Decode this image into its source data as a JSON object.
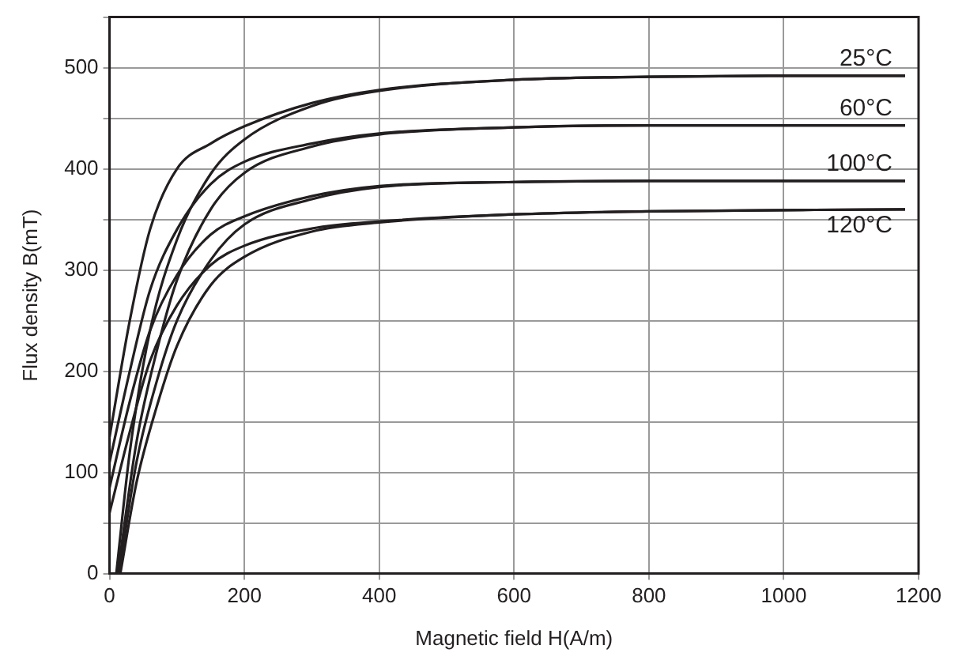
{
  "chart_data": {
    "type": "line",
    "xlabel": "Magnetic field H(A/m)",
    "ylabel": "Flux density B(mT)",
    "xlim": [
      0,
      1200
    ],
    "xticks": [
      0,
      200,
      400,
      600,
      800,
      1000,
      1200
    ],
    "ylim": [
      0,
      550
    ],
    "yticks": [
      0,
      {
        "value": 50,
        "label": null
      },
      100,
      {
        "value": 150,
        "label": null
      },
      200,
      {
        "value": 250,
        "label": null
      },
      300,
      {
        "value": 350,
        "label": null
      },
      400,
      {
        "value": 450,
        "label": null
      },
      500,
      {
        "value": 550,
        "label": null
      }
    ],
    "grid": true,
    "legend": false,
    "marker": "none",
    "line_style": "solid",
    "series": [
      {
        "name": "25°C",
        "color": "#231f20",
        "x": [
          0,
          30,
          60,
          100,
          150,
          200,
          300,
          400,
          600,
          800,
          1000,
          1180
        ],
        "values": [
          135,
          250,
          340,
          400,
          425,
          442,
          465,
          478,
          488,
          491,
          492,
          492
        ]
      },
      {
        "color": "#231f20",
        "x": [
          10,
          30,
          60,
          100,
          150,
          200,
          300,
          400,
          600,
          800,
          1000,
          1180
        ],
        "values": [
          0,
          120,
          240,
          330,
          395,
          429,
          462,
          477,
          488,
          491,
          492,
          492
        ]
      },
      {
        "name": "60°C",
        "color": "#231f20",
        "x": [
          0,
          30,
          60,
          100,
          150,
          200,
          300,
          400,
          600,
          800,
          1180
        ],
        "values": [
          110,
          200,
          280,
          340,
          385,
          407,
          425,
          435,
          441,
          443,
          443
        ]
      },
      {
        "color": "#231f20",
        "x": [
          12,
          40,
          70,
          100,
          150,
          200,
          300,
          400,
          600,
          800,
          1180
        ],
        "values": [
          0,
          130,
          220,
          290,
          360,
          396,
          422,
          434,
          441,
          443,
          443
        ]
      },
      {
        "name": "100°C",
        "color": "#231f20",
        "x": [
          0,
          30,
          60,
          100,
          150,
          200,
          300,
          400,
          600,
          800,
          1180
        ],
        "values": [
          85,
          170,
          240,
          295,
          335,
          353,
          373,
          383,
          387,
          388,
          388
        ]
      },
      {
        "color": "#231f20",
        "x": [
          14,
          40,
          70,
          100,
          150,
          200,
          300,
          400,
          600,
          800,
          1180
        ],
        "values": [
          0,
          110,
          190,
          250,
          310,
          345,
          370,
          382,
          387,
          388,
          388
        ]
      },
      {
        "name": "120°C",
        "color": "#231f20",
        "x": [
          0,
          30,
          60,
          100,
          150,
          200,
          300,
          400,
          600,
          800,
          1180
        ],
        "values": [
          60,
          140,
          210,
          265,
          305,
          324,
          341,
          348,
          355,
          358,
          360
        ]
      },
      {
        "color": "#231f20",
        "x": [
          16,
          40,
          70,
          100,
          150,
          200,
          300,
          400,
          600,
          800,
          1180
        ],
        "values": [
          0,
          90,
          165,
          225,
          285,
          313,
          338,
          347,
          355,
          358,
          360
        ]
      }
    ]
  }
}
